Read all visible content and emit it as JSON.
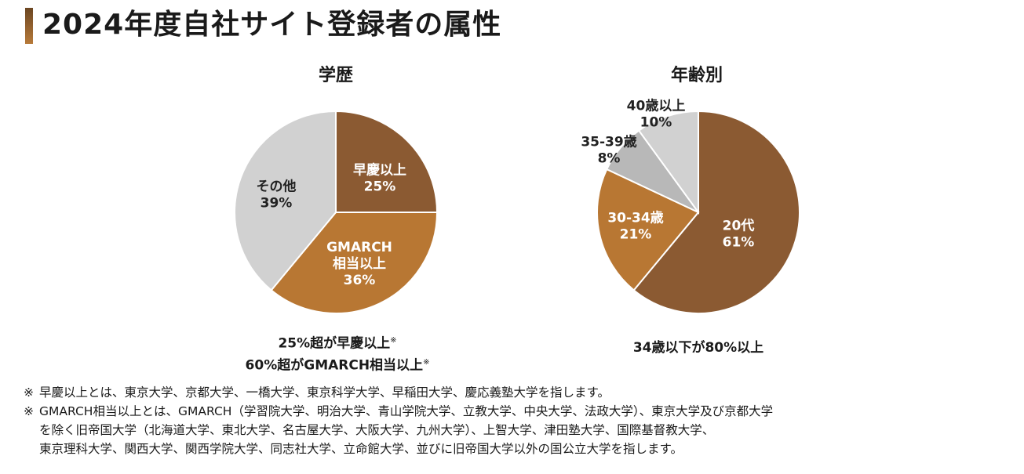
{
  "page": {
    "title": "2024年度自社サイト登録者の属性"
  },
  "chart_data": [
    {
      "type": "pie",
      "title": "学歴",
      "categories": [
        "早慶以上",
        "GMARCH相当以上",
        "その他"
      ],
      "label_lines": [
        [
          "早慶以上"
        ],
        [
          "GMARCH",
          "相当以上"
        ],
        [
          "その他"
        ]
      ],
      "values": [
        25,
        36,
        39
      ],
      "value_labels": [
        "25%",
        "36%",
        "39%"
      ],
      "colors": [
        "#8b5a32",
        "#b87733",
        "#d1d1d1"
      ],
      "label_colors": [
        "#ffffff",
        "#ffffff",
        "#222222"
      ],
      "caption_lines": [
        "25%超が早慶以上",
        "60%超がGMARCH相当以上"
      ],
      "caption_mark": "※"
    },
    {
      "type": "pie",
      "title": "年齢別",
      "categories": [
        "20代",
        "30-34歳",
        "35-39歳",
        "40歳以上"
      ],
      "label_lines": [
        [
          "20代"
        ],
        [
          "30-34歳"
        ],
        [
          "35-39歳"
        ],
        [
          "40歳以上"
        ]
      ],
      "values": [
        61,
        21,
        8,
        10
      ],
      "value_labels": [
        "61%",
        "21%",
        "8%",
        "10%"
      ],
      "colors": [
        "#8b5a32",
        "#b87733",
        "#b8b8b8",
        "#d1d1d1"
      ],
      "label_colors": [
        "#ffffff",
        "#ffffff",
        "#222222",
        "#222222"
      ],
      "caption_lines": [
        "34歳以下が80%以上"
      ]
    }
  ],
  "notes": {
    "mark": "※",
    "note1": "早慶以上とは、東京大学、京都大学、一橋大学、東京科学大学、早稲田大学、慶応義塾大学を指します。",
    "note2_line1": "GMARCH相当以上とは、GMARCH（学習院大学、明治大学、青山学院大学、立教大学、中央大学、法政大学）、東京大学及び京都大学",
    "note2_line2": "を除く旧帝国大学（北海道大学、東北大学、名古屋大学、大阪大学、九州大学）、上智大学、津田塾大学、国際基督教大学、",
    "note2_line3": "東京理科大学、関西大学、関西学院大学、同志社大学、立命館大学、並びに旧帝国大学以外の国公立大学を指します。"
  }
}
